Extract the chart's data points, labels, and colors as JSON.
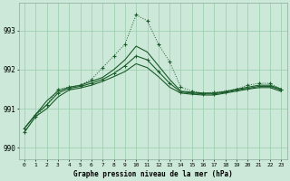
{
  "title": "Graphe pression niveau de la mer (hPa)",
  "background_color": "#cce8d8",
  "grid_color": "#99ccaa",
  "line_color": "#1a5c2a",
  "ylim": [
    989.7,
    993.7
  ],
  "yticks": [
    990,
    991,
    992,
    993
  ],
  "hours": [
    0,
    1,
    2,
    3,
    4,
    5,
    6,
    7,
    8,
    9,
    10,
    11,
    12,
    13,
    14,
    15,
    16,
    17,
    18,
    19,
    20,
    21,
    22,
    23
  ],
  "line_volatile": [
    990.4,
    990.8,
    991.1,
    991.5,
    991.55,
    991.6,
    991.75,
    992.05,
    992.35,
    992.65,
    993.4,
    993.25,
    992.65,
    992.2,
    991.55,
    991.45,
    991.4,
    991.42,
    991.45,
    991.5,
    991.6,
    991.65,
    991.65,
    991.5
  ],
  "line_upper": [
    990.5,
    990.85,
    991.2,
    991.45,
    991.55,
    991.6,
    991.7,
    991.8,
    992.0,
    992.25,
    992.6,
    992.45,
    992.1,
    991.75,
    991.45,
    991.42,
    991.4,
    991.4,
    991.44,
    991.5,
    991.55,
    991.6,
    991.6,
    991.5
  ],
  "line_mid": [
    990.5,
    990.85,
    991.1,
    991.4,
    991.52,
    991.57,
    991.65,
    991.75,
    991.9,
    992.1,
    992.35,
    992.25,
    991.95,
    991.65,
    991.43,
    991.4,
    991.38,
    991.38,
    991.42,
    991.48,
    991.52,
    991.57,
    991.57,
    991.48
  ],
  "line_lower": [
    990.4,
    990.8,
    991.0,
    991.3,
    991.48,
    991.53,
    991.6,
    991.7,
    991.82,
    991.95,
    992.15,
    992.05,
    991.82,
    991.55,
    991.4,
    991.37,
    991.35,
    991.35,
    991.4,
    991.45,
    991.5,
    991.54,
    991.54,
    991.44
  ]
}
